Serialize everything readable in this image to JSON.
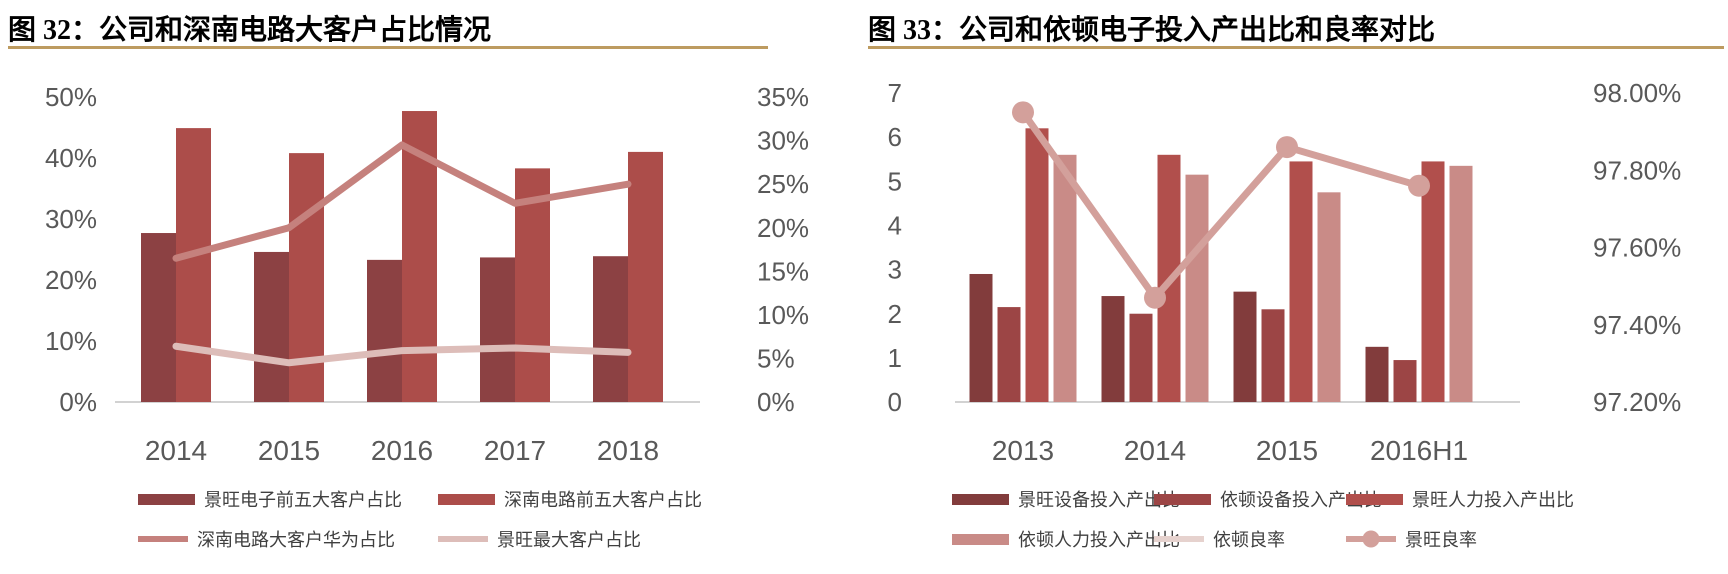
{
  "page": {
    "accent_line_color": "#BD9B60",
    "axis_text_color": "#595959",
    "baseline_color": "#D2D2D2"
  },
  "chart_data": [
    {
      "type": "bar",
      "subtype": "bar+line-dual-axis",
      "title": "图 32：公司和深南电路大客户占比情况",
      "categories": [
        "2014",
        "2015",
        "2016",
        "2017",
        "2018"
      ],
      "left_axis": {
        "min": 0,
        "max": 50,
        "tick_step": 10,
        "tick_labels": [
          "0%",
          "10%",
          "20%",
          "30%",
          "40%",
          "50%"
        ]
      },
      "right_axis": {
        "min": 0,
        "max": 35,
        "tick_step": 5,
        "tick_labels": [
          "0%",
          "5%",
          "10%",
          "15%",
          "20%",
          "25%",
          "30%",
          "35%"
        ]
      },
      "grid": false,
      "legend_position": "bottom",
      "series": [
        {
          "name": "景旺电子前五大客户占比",
          "kind": "bar",
          "axis": "left",
          "color": "#8C4143",
          "values": [
            27.7,
            24.6,
            23.3,
            23.7,
            23.9
          ]
        },
        {
          "name": "深南电路前五大客户占比",
          "kind": "bar",
          "axis": "left",
          "color": "#AC4D4A",
          "values": [
            44.9,
            40.8,
            47.7,
            38.3,
            41.0
          ]
        },
        {
          "name": "深南电路大客户华为占比",
          "kind": "line",
          "axis": "right",
          "color": "#C5817D",
          "marker": "none",
          "values": [
            16.5,
            20.0,
            29.5,
            22.8,
            25.0
          ]
        },
        {
          "name": "景旺最大客户占比",
          "kind": "line",
          "axis": "right",
          "color": "#DDBDB9",
          "marker": "none",
          "values": [
            6.4,
            4.5,
            5.9,
            6.2,
            5.7
          ]
        }
      ]
    },
    {
      "type": "bar",
      "subtype": "bar+line-dual-axis",
      "title": "图 33：公司和依顿电子投入产出比和良率对比",
      "categories": [
        "2013",
        "2014",
        "2015",
        "2016H1"
      ],
      "left_axis": {
        "min": 0,
        "max": 7,
        "tick_step": 1,
        "tick_labels": [
          "0",
          "1",
          "2",
          "3",
          "4",
          "5",
          "6",
          "7"
        ]
      },
      "right_axis": {
        "min": 97.2,
        "max": 98.0,
        "tick_step": 0.2,
        "tick_labels": [
          "97.20%",
          "97.40%",
          "97.60%",
          "97.80%",
          "98.00%"
        ]
      },
      "grid": false,
      "legend_position": "bottom",
      "series": [
        {
          "name": "景旺设备投入产出比",
          "kind": "bar",
          "axis": "left",
          "color": "#823C3C",
          "values": [
            2.9,
            2.4,
            2.5,
            1.25
          ]
        },
        {
          "name": "依顿设备投入产出比",
          "kind": "bar",
          "axis": "left",
          "color": "#9C4545",
          "values": [
            2.15,
            2.0,
            2.1,
            0.95
          ]
        },
        {
          "name": "景旺人力投入产出比",
          "kind": "bar",
          "axis": "left",
          "color": "#B14F4C",
          "values": [
            6.2,
            5.6,
            5.45,
            5.45
          ]
        },
        {
          "name": "依顿人力投入产出比",
          "kind": "bar",
          "axis": "left",
          "color": "#C98B87",
          "values": [
            5.6,
            5.15,
            4.75,
            5.35
          ]
        },
        {
          "name": "依顿良率",
          "kind": "line",
          "axis": "right",
          "color": "#E6D2CE",
          "marker": "none",
          "values": [
            null,
            null,
            null,
            null
          ]
        },
        {
          "name": "景旺良率",
          "kind": "line",
          "axis": "right",
          "color": "#D3A09B",
          "marker": "circle",
          "values": [
            97.95,
            97.47,
            97.86,
            97.76
          ]
        }
      ]
    }
  ]
}
